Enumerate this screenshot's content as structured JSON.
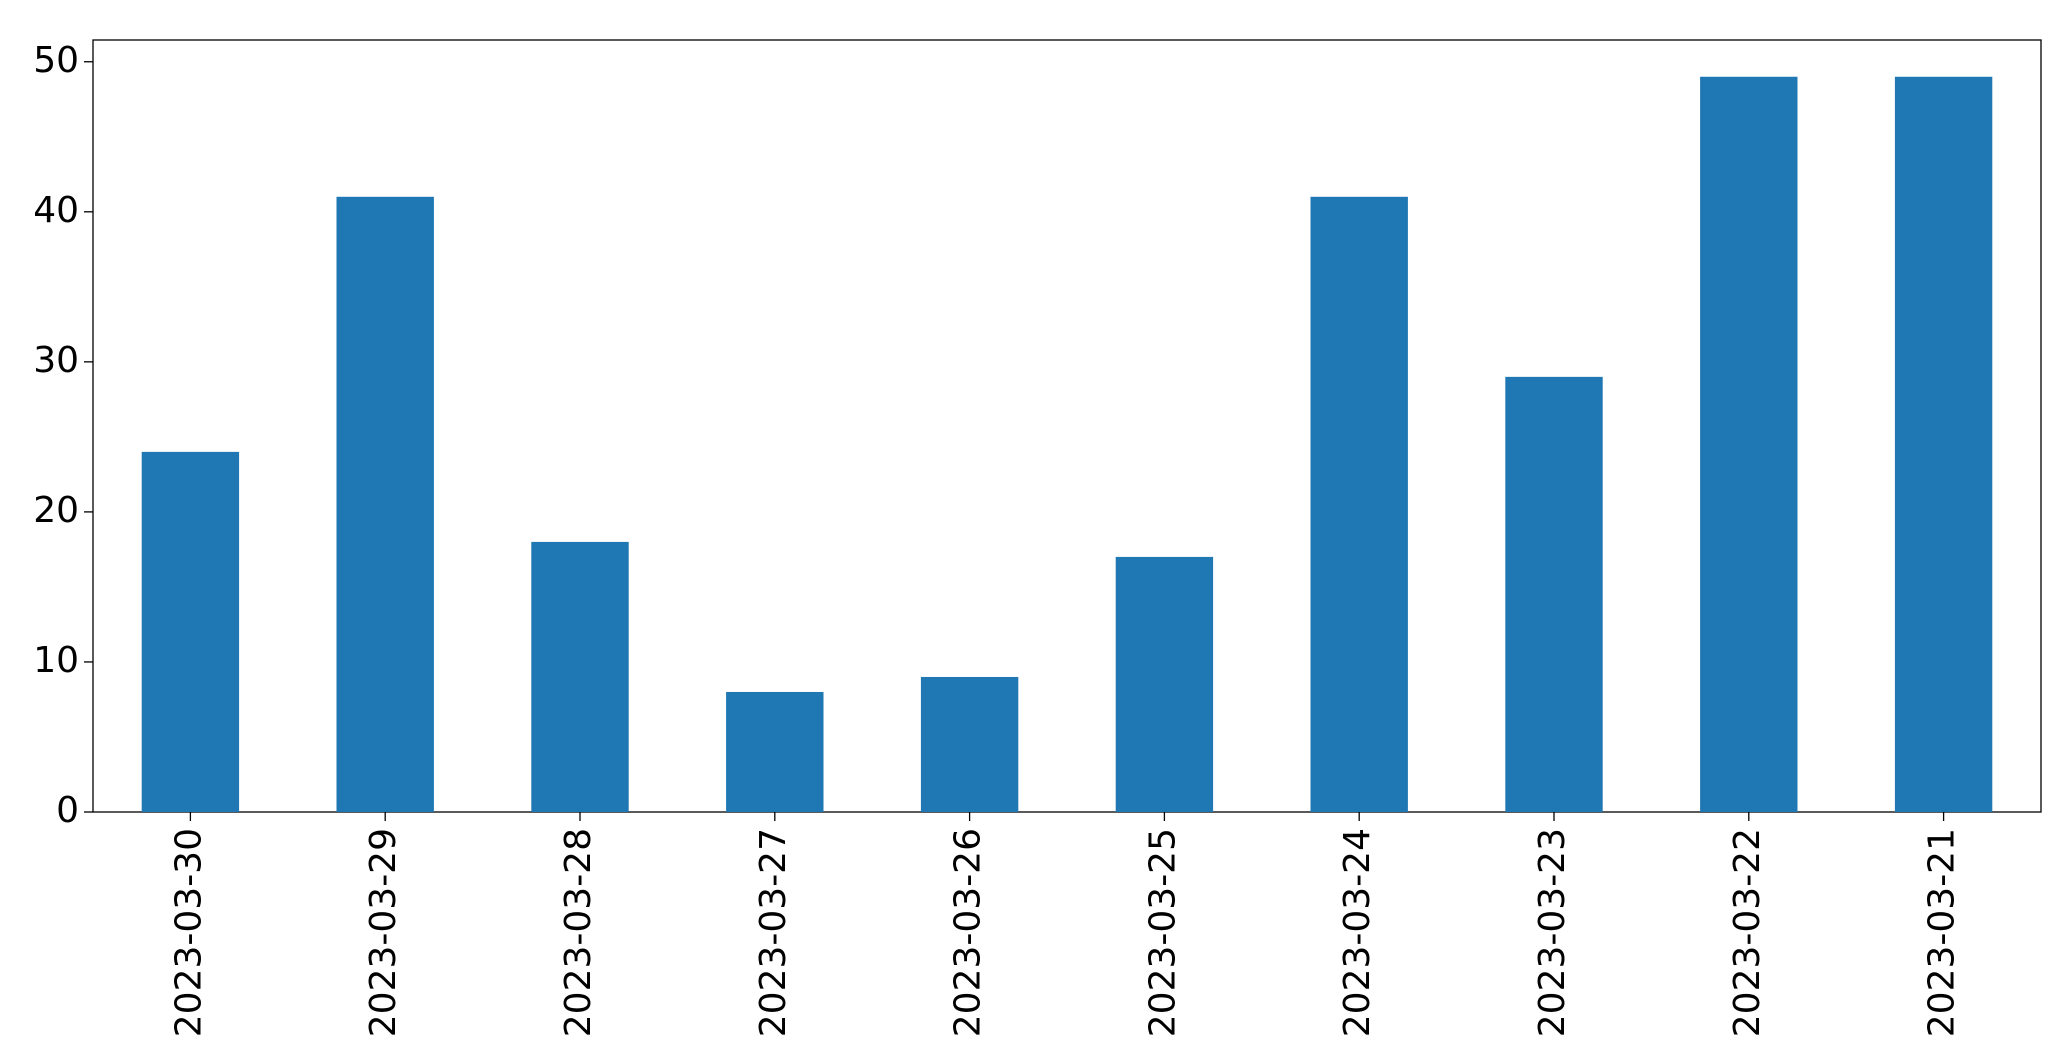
{
  "chart_data": {
    "type": "bar",
    "categories": [
      "2023-03-30",
      "2023-03-29",
      "2023-03-28",
      "2023-03-27",
      "2023-03-26",
      "2023-03-25",
      "2023-03-24",
      "2023-03-23",
      "2023-03-22",
      "2023-03-21"
    ],
    "values": [
      24,
      41,
      18,
      8,
      9,
      17,
      41,
      29,
      49,
      49
    ],
    "color": "#1f77b4",
    "ylim": [
      0,
      51.45
    ],
    "yticks": [
      0,
      10,
      20,
      30,
      40,
      50
    ],
    "grid": false
  }
}
